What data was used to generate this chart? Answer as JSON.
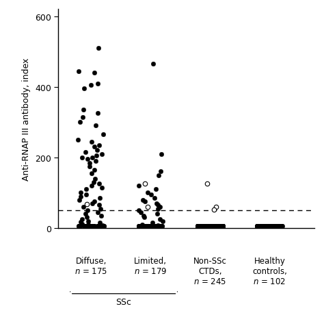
{
  "ylabel": "Anti-RNAP III antibody, index",
  "ylim": [
    0,
    620
  ],
  "yticks": [
    0,
    200,
    400,
    600
  ],
  "dashed_line_y": 50,
  "diffuse_filled": [
    510,
    445,
    440,
    410,
    405,
    395,
    335,
    325,
    315,
    300,
    290,
    265,
    250,
    245,
    235,
    230,
    220,
    215,
    210,
    205,
    200,
    200,
    195,
    190,
    185,
    175,
    165,
    155,
    140,
    130,
    125,
    120,
    115,
    110,
    100,
    95,
    90,
    85,
    80,
    75,
    70,
    65,
    60,
    55,
    50,
    45,
    40,
    35,
    30,
    25,
    20,
    18,
    15,
    12,
    10,
    8,
    5,
    5,
    5,
    5,
    5,
    5,
    5,
    5,
    5,
    5,
    5,
    5,
    5,
    5,
    5,
    5,
    5,
    5,
    5,
    5,
    5,
    5,
    5,
    5,
    5,
    5,
    5,
    5,
    5,
    5,
    5,
    5,
    5,
    5,
    5,
    5,
    5,
    5,
    5,
    5,
    5,
    5,
    5,
    5,
    5,
    5,
    5,
    5,
    5,
    5,
    5,
    5,
    5,
    5
  ],
  "diffuse_open": [
    68
  ],
  "limited_filled": [
    465,
    210,
    160,
    150,
    120,
    110,
    100,
    95,
    85,
    80,
    75,
    70,
    65,
    60,
    55,
    50,
    45,
    40,
    35,
    30,
    25,
    20,
    15,
    10,
    8,
    5,
    5,
    5,
    5,
    5,
    5,
    5,
    5,
    5,
    5,
    5,
    5,
    5,
    5,
    5,
    5,
    5,
    5,
    5,
    5,
    5,
    5,
    5,
    5,
    5,
    5,
    5,
    5,
    5,
    5,
    5,
    5,
    5,
    5,
    5,
    5,
    5,
    5,
    5,
    5,
    5,
    5,
    5,
    5,
    5,
    5,
    5,
    5,
    5,
    5,
    5,
    5,
    5,
    5,
    5,
    5,
    5,
    5,
    5,
    5,
    5,
    5,
    5,
    5,
    5,
    5,
    5,
    5,
    5,
    5,
    5,
    5,
    5,
    5,
    5,
    5
  ],
  "limited_open": [
    125,
    60
  ],
  "nonSSc_filled": [
    5,
    5,
    5,
    5,
    5,
    5,
    5,
    5,
    5,
    5,
    5,
    5,
    5,
    5,
    5,
    5,
    5,
    5,
    5,
    5,
    5,
    5,
    5,
    5,
    5,
    5,
    5,
    5,
    5,
    5,
    5,
    5,
    5,
    5,
    5,
    5,
    5,
    5,
    5,
    5,
    5,
    5,
    5,
    5,
    5,
    5,
    5,
    5,
    5,
    5,
    5,
    5,
    5,
    5,
    5,
    5,
    5,
    5,
    5,
    5,
    5,
    5,
    5,
    5,
    5,
    5,
    5,
    5,
    5,
    5,
    5,
    5,
    5,
    5,
    5,
    5,
    5,
    5,
    5,
    5,
    5,
    5,
    5,
    5,
    5,
    5,
    5,
    5,
    5,
    5,
    5,
    5,
    5,
    5,
    5,
    5,
    5,
    5,
    5,
    5,
    5,
    5,
    5,
    5,
    5,
    5,
    5,
    5,
    5,
    5,
    5,
    5,
    5,
    5,
    5,
    5,
    5,
    5,
    5,
    5,
    5,
    5,
    5,
    5,
    5,
    5,
    5,
    5,
    5,
    5,
    5,
    5,
    5,
    5,
    5,
    5,
    5,
    5,
    5,
    5,
    5,
    5,
    5,
    5,
    5,
    5,
    5,
    5,
    5,
    5,
    5,
    5,
    5,
    5,
    5,
    5,
    5,
    5,
    5,
    5,
    5,
    5,
    5,
    5,
    5,
    5,
    5,
    5,
    5,
    5,
    5,
    5,
    5,
    5,
    5,
    5,
    5,
    5,
    5,
    5,
    5,
    5,
    5,
    5,
    5,
    5,
    5,
    5,
    5,
    5,
    5,
    5,
    5,
    5,
    5,
    5,
    5,
    5,
    5,
    5,
    5,
    5,
    5,
    5,
    5,
    5,
    5,
    5,
    5,
    5,
    5,
    5,
    5,
    5,
    5,
    5,
    5,
    5,
    5,
    5,
    5,
    5,
    5,
    5,
    5,
    5,
    5,
    5,
    5,
    5,
    5,
    5,
    5,
    5,
    5,
    5,
    5,
    5,
    5,
    5,
    5,
    5,
    5,
    5,
    5
  ],
  "nonSSc_open": [
    125,
    60,
    52
  ],
  "healthy_filled": [
    5,
    5,
    5,
    5,
    5,
    5,
    5,
    5,
    5,
    5,
    5,
    5,
    5,
    5,
    5,
    5,
    5,
    5,
    5,
    5,
    5,
    5,
    5,
    5,
    5,
    5,
    5,
    5,
    5,
    5,
    5,
    5,
    5,
    5,
    5,
    5,
    5,
    5,
    5,
    5,
    5,
    5,
    5,
    5,
    5,
    5,
    5,
    5,
    5,
    5,
    5,
    5,
    5,
    5,
    5,
    5,
    5,
    5,
    5,
    5,
    5,
    5,
    5,
    5,
    5,
    5,
    5,
    5,
    5,
    5,
    5,
    5,
    5,
    5,
    5,
    5,
    5,
    5,
    5,
    5,
    5,
    5,
    5,
    5,
    5,
    5,
    5,
    5,
    5,
    5,
    5,
    5,
    5,
    5,
    5,
    5,
    5,
    5,
    5,
    5,
    5,
    5
  ],
  "healthy_open": [],
  "marker_size": 22,
  "background_color": "#ffffff"
}
